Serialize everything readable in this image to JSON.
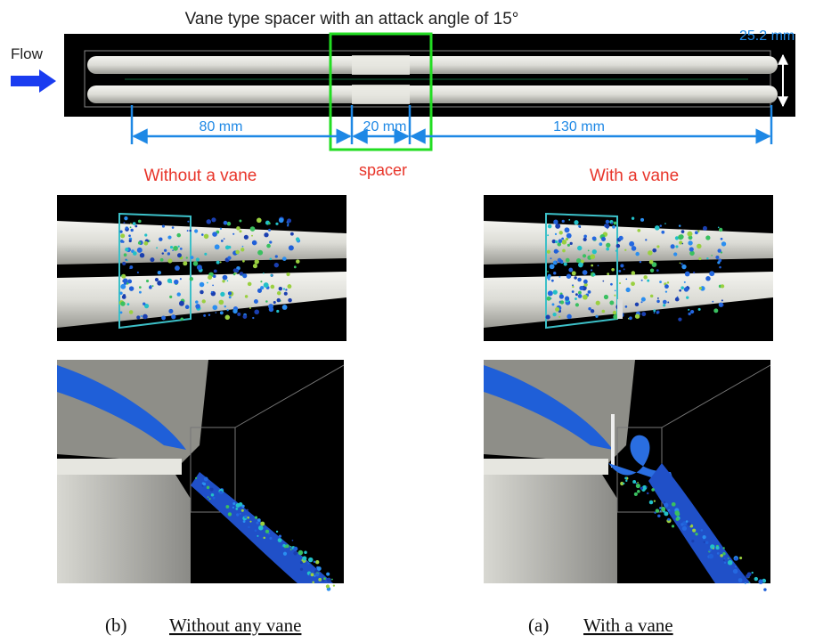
{
  "figure": {
    "title": "Vane type spacer with an attack angle of 15°",
    "flow_label": "Flow",
    "height_label": "25.2 mm",
    "dimensions": [
      "80 mm",
      "20 mm",
      "130 mm"
    ],
    "spacer_label": "spacer",
    "panels": [
      {
        "heading": "Without a vane",
        "caption_letter": "(b)",
        "caption_text": "Without any vane"
      },
      {
        "heading": "With a vane",
        "caption_letter": "(a)",
        "caption_text": "With a vane"
      }
    ]
  }
}
